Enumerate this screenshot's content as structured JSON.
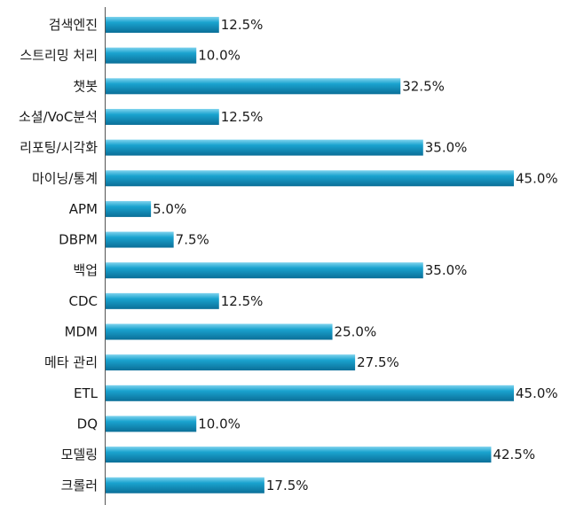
{
  "chart_data": {
    "type": "bar",
    "orientation": "horizontal",
    "categories": [
      "검색엔진",
      "스트리밍 처리",
      "챗봇",
      "소셜/VoC분석",
      "리포팅/시각화",
      "마이닝/통계",
      "APM",
      "DBPM",
      "백업",
      "CDC",
      "MDM",
      "메타 관리",
      "ETL",
      "DQ",
      "모델링",
      "크롤러"
    ],
    "values": [
      12.5,
      10.0,
      32.5,
      12.5,
      35.0,
      45.0,
      5.0,
      7.5,
      35.0,
      12.5,
      25.0,
      27.5,
      45.0,
      10.0,
      42.5,
      17.5
    ],
    "value_labels": [
      "12.5%",
      "10.0%",
      "32.5%",
      "12.5%",
      "35.0%",
      "45.0%",
      "5.0%",
      "7.5%",
      "35.0%",
      "12.5%",
      "25.0%",
      "27.5%",
      "45.0%",
      "10.0%",
      "42.5%",
      "17.5%"
    ],
    "xlim": [
      0,
      45
    ],
    "grid": false,
    "legend": "none",
    "bar_color": "#1a9ec9"
  }
}
